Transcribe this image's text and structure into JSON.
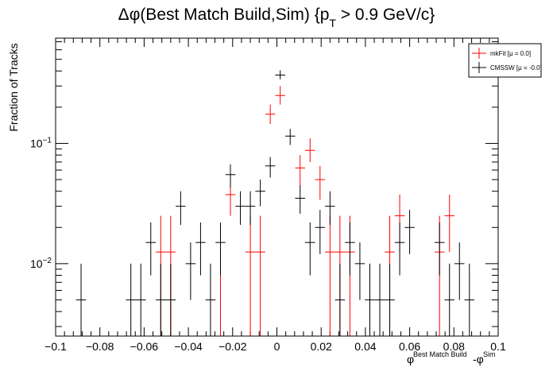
{
  "chart_data": {
    "type": "scatter",
    "title_main": "Δφ(Best Match Build,Sim) {p",
    "title_sub": "T",
    "title_tail": " > 0.9 GeV/c}",
    "xlabel_base": "φ",
    "xlabel_sup1": "Best Match Build",
    "xlabel_mid": "-φ",
    "xlabel_sup2": "Sim",
    "ylabel": "Fraction of Tracks",
    "xlim": [
      -0.1,
      0.1
    ],
    "ylim": [
      0.0025,
      0.75
    ],
    "yscale": "log",
    "bin_width": 0.0045,
    "x_ticks": [
      -0.1,
      -0.08,
      -0.06,
      -0.04,
      -0.02,
      0,
      0.02,
      0.04,
      0.06,
      0.08,
      0.1
    ],
    "x_tick_labels": [
      "−0.1",
      "−0.08",
      "−0.06",
      "−0.04",
      "−0.02",
      "0",
      "0.02",
      "0.04",
      "0.06",
      "0.08",
      "0.1"
    ],
    "y_major_ticks": [
      0.01,
      0.1
    ],
    "y_tick_labels": [
      "10",
      "10"
    ],
    "y_tick_exponents": [
      "−2",
      "−1"
    ],
    "legend_position": "top-right",
    "series": [
      {
        "name": "mkFit  [μ =  0.0]",
        "color": "#ff0000",
        "points": [
          {
            "x": -0.0525,
            "y": 0.0125,
            "lo": 0.0025,
            "hi": 0.025
          },
          {
            "x": -0.048,
            "y": 0.0125,
            "lo": 0.0025,
            "hi": 0.025
          },
          {
            "x": -0.0255,
            "y": 0.0025,
            "lo": 0.0025,
            "hi": 0.01
          },
          {
            "x": -0.021,
            "y": 0.0375,
            "lo": 0.025,
            "hi": 0.05
          },
          {
            "x": -0.012,
            "y": 0.0125,
            "lo": 0.0025,
            "hi": 0.025
          },
          {
            "x": -0.0075,
            "y": 0.0125,
            "lo": 0.0025,
            "hi": 0.025
          },
          {
            "x": -0.003,
            "y": 0.175,
            "lo": 0.145,
            "hi": 0.21
          },
          {
            "x": 0.0015,
            "y": 0.25,
            "lo": 0.21,
            "hi": 0.3
          },
          {
            "x": 0.0105,
            "y": 0.0625,
            "lo": 0.045,
            "hi": 0.08
          },
          {
            "x": 0.015,
            "y": 0.0875,
            "lo": 0.07,
            "hi": 0.11
          },
          {
            "x": 0.0195,
            "y": 0.05,
            "lo": 0.034,
            "hi": 0.065
          },
          {
            "x": 0.024,
            "y": 0.0125,
            "lo": 0.0025,
            "hi": 0.025
          },
          {
            "x": 0.0285,
            "y": 0.0125,
            "lo": 0.0025,
            "hi": 0.025
          },
          {
            "x": 0.033,
            "y": 0.0125,
            "lo": 0.0025,
            "hi": 0.025
          },
          {
            "x": 0.042,
            "y": 0.0025,
            "lo": 0.0025,
            "hi": 0.01
          },
          {
            "x": 0.051,
            "y": 0.0125,
            "lo": 0.0025,
            "hi": 0.025
          },
          {
            "x": 0.0555,
            "y": 0.025,
            "lo": 0.0125,
            "hi": 0.0375
          },
          {
            "x": 0.0735,
            "y": 0.0125,
            "lo": 0.0025,
            "hi": 0.025
          },
          {
            "x": 0.078,
            "y": 0.025,
            "lo": 0.0125,
            "hi": 0.0375
          }
        ]
      },
      {
        "name": "CMSSW  [μ = -0.0]",
        "color": "#000000",
        "points": [
          {
            "x": -0.0885,
            "y": 0.005,
            "lo": 0.0025,
            "hi": 0.01
          },
          {
            "x": -0.066,
            "y": 0.005,
            "lo": 0.0025,
            "hi": 0.01
          },
          {
            "x": -0.0615,
            "y": 0.005,
            "lo": 0.0025,
            "hi": 0.01
          },
          {
            "x": -0.057,
            "y": 0.015,
            "lo": 0.008,
            "hi": 0.022
          },
          {
            "x": -0.0525,
            "y": 0.005,
            "lo": 0.0025,
            "hi": 0.01
          },
          {
            "x": -0.048,
            "y": 0.005,
            "lo": 0.0025,
            "hi": 0.01
          },
          {
            "x": -0.0435,
            "y": 0.03,
            "lo": 0.021,
            "hi": 0.04
          },
          {
            "x": -0.039,
            "y": 0.01,
            "lo": 0.005,
            "hi": 0.015
          },
          {
            "x": -0.0345,
            "y": 0.015,
            "lo": 0.008,
            "hi": 0.022
          },
          {
            "x": -0.03,
            "y": 0.005,
            "lo": 0.0025,
            "hi": 0.01
          },
          {
            "x": -0.0255,
            "y": 0.015,
            "lo": 0.008,
            "hi": 0.022
          },
          {
            "x": -0.021,
            "y": 0.055,
            "lo": 0.043,
            "hi": 0.067
          },
          {
            "x": -0.0165,
            "y": 0.03,
            "lo": 0.021,
            "hi": 0.04
          },
          {
            "x": -0.012,
            "y": 0.03,
            "lo": 0.021,
            "hi": 0.04
          },
          {
            "x": -0.0075,
            "y": 0.04,
            "lo": 0.03,
            "hi": 0.05
          },
          {
            "x": -0.003,
            "y": 0.065,
            "lo": 0.052,
            "hi": 0.077
          },
          {
            "x": 0.0015,
            "y": 0.37,
            "lo": 0.34,
            "hi": 0.405
          },
          {
            "x": 0.006,
            "y": 0.115,
            "lo": 0.097,
            "hi": 0.132
          },
          {
            "x": 0.0105,
            "y": 0.035,
            "lo": 0.026,
            "hi": 0.045
          },
          {
            "x": 0.015,
            "y": 0.015,
            "lo": 0.008,
            "hi": 0.022
          },
          {
            "x": 0.0195,
            "y": 0.02,
            "lo": 0.012,
            "hi": 0.028
          },
          {
            "x": 0.024,
            "y": 0.03,
            "lo": 0.021,
            "hi": 0.04
          },
          {
            "x": 0.0285,
            "y": 0.005,
            "lo": 0.0025,
            "hi": 0.01
          },
          {
            "x": 0.033,
            "y": 0.015,
            "lo": 0.008,
            "hi": 0.022
          },
          {
            "x": 0.0375,
            "y": 0.01,
            "lo": 0.005,
            "hi": 0.015
          },
          {
            "x": 0.042,
            "y": 0.005,
            "lo": 0.0025,
            "hi": 0.01
          },
          {
            "x": 0.0465,
            "y": 0.005,
            "lo": 0.0025,
            "hi": 0.01
          },
          {
            "x": 0.051,
            "y": 0.005,
            "lo": 0.0025,
            "hi": 0.01
          },
          {
            "x": 0.0555,
            "y": 0.015,
            "lo": 0.008,
            "hi": 0.022
          },
          {
            "x": 0.06,
            "y": 0.02,
            "lo": 0.012,
            "hi": 0.028
          },
          {
            "x": 0.0735,
            "y": 0.015,
            "lo": 0.008,
            "hi": 0.022
          },
          {
            "x": 0.078,
            "y": 0.005,
            "lo": 0.0025,
            "hi": 0.01
          },
          {
            "x": 0.0825,
            "y": 0.01,
            "lo": 0.005,
            "hi": 0.015
          },
          {
            "x": 0.087,
            "y": 0.005,
            "lo": 0.0025,
            "hi": 0.01
          }
        ]
      }
    ]
  }
}
